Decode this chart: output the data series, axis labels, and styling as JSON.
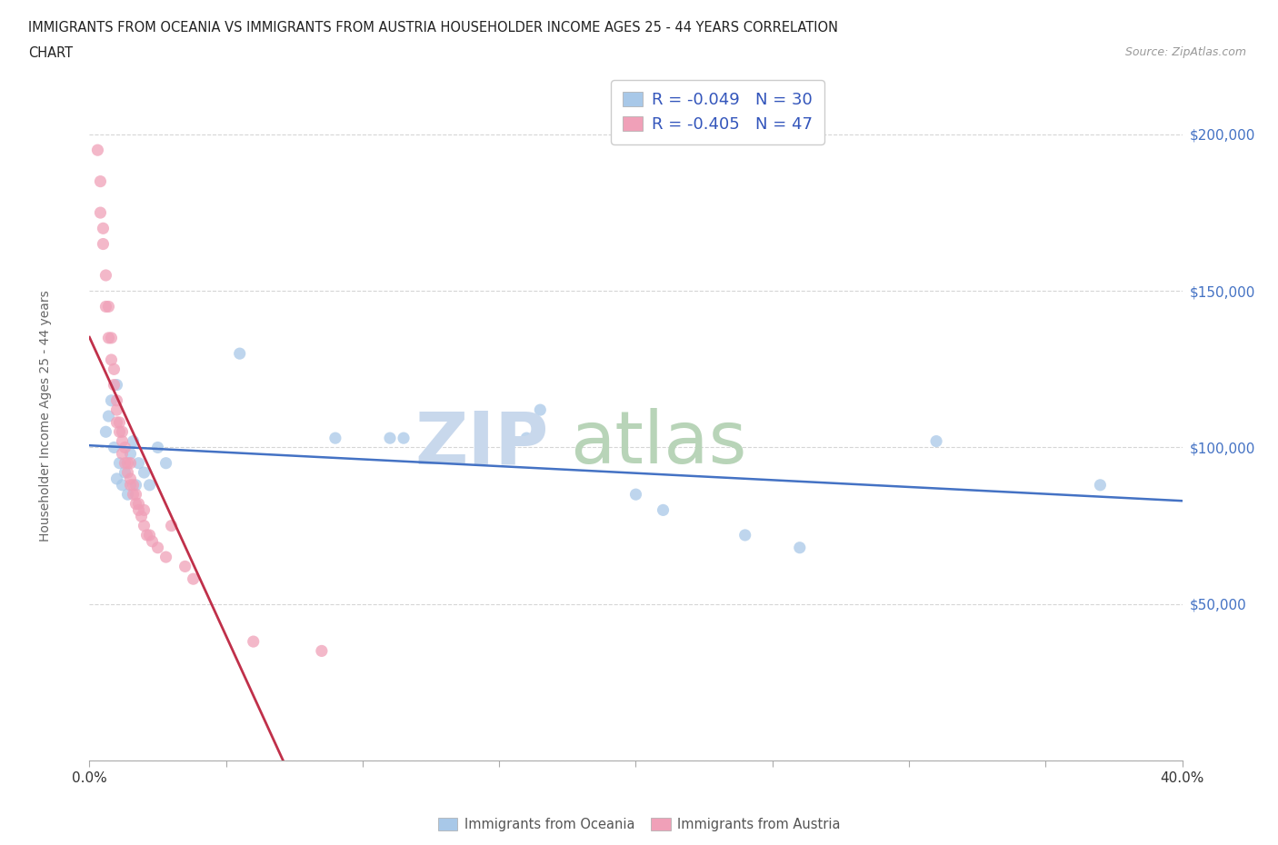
{
  "title_line1": "IMMIGRANTS FROM OCEANIA VS IMMIGRANTS FROM AUSTRIA HOUSEHOLDER INCOME AGES 25 - 44 YEARS CORRELATION",
  "title_line2": "CHART",
  "source": "Source: ZipAtlas.com",
  "ylabel": "Householder Income Ages 25 - 44 years",
  "xlim": [
    0.0,
    0.4
  ],
  "ylim": [
    0,
    220000
  ],
  "oceania_color": "#a8c8e8",
  "austria_color": "#f0a0b8",
  "oceania_line_color": "#4472c4",
  "austria_line_color": "#c0304a",
  "austria_line_dash_color": "#e0909a",
  "watermark_zip_color": "#d0dff0",
  "watermark_atlas_color": "#c8e0c8",
  "oceania_r": -0.049,
  "oceania_n": 30,
  "austria_r": -0.405,
  "austria_n": 47,
  "oceania_x": [
    0.006,
    0.007,
    0.008,
    0.009,
    0.01,
    0.01,
    0.011,
    0.012,
    0.013,
    0.014,
    0.015,
    0.016,
    0.017,
    0.018,
    0.02,
    0.022,
    0.025,
    0.028,
    0.055,
    0.09,
    0.11,
    0.115,
    0.16,
    0.165,
    0.2,
    0.21,
    0.24,
    0.26,
    0.31,
    0.37
  ],
  "oceania_y": [
    105000,
    110000,
    115000,
    100000,
    120000,
    90000,
    95000,
    88000,
    92000,
    85000,
    98000,
    102000,
    88000,
    95000,
    92000,
    88000,
    100000,
    95000,
    130000,
    103000,
    103000,
    103000,
    103000,
    112000,
    85000,
    80000,
    72000,
    68000,
    102000,
    88000
  ],
  "austria_x": [
    0.003,
    0.004,
    0.004,
    0.005,
    0.005,
    0.006,
    0.006,
    0.007,
    0.007,
    0.008,
    0.008,
    0.009,
    0.009,
    0.01,
    0.01,
    0.01,
    0.011,
    0.011,
    0.012,
    0.012,
    0.012,
    0.013,
    0.013,
    0.014,
    0.014,
    0.015,
    0.015,
    0.015,
    0.016,
    0.016,
    0.017,
    0.017,
    0.018,
    0.018,
    0.019,
    0.02,
    0.02,
    0.021,
    0.022,
    0.023,
    0.025,
    0.028,
    0.03,
    0.035,
    0.038,
    0.06,
    0.085
  ],
  "austria_y": [
    195000,
    185000,
    175000,
    170000,
    165000,
    155000,
    145000,
    145000,
    135000,
    135000,
    128000,
    125000,
    120000,
    115000,
    112000,
    108000,
    108000,
    105000,
    105000,
    102000,
    98000,
    100000,
    95000,
    95000,
    92000,
    95000,
    90000,
    88000,
    88000,
    85000,
    85000,
    82000,
    82000,
    80000,
    78000,
    80000,
    75000,
    72000,
    72000,
    70000,
    68000,
    65000,
    75000,
    62000,
    58000,
    38000,
    35000
  ]
}
